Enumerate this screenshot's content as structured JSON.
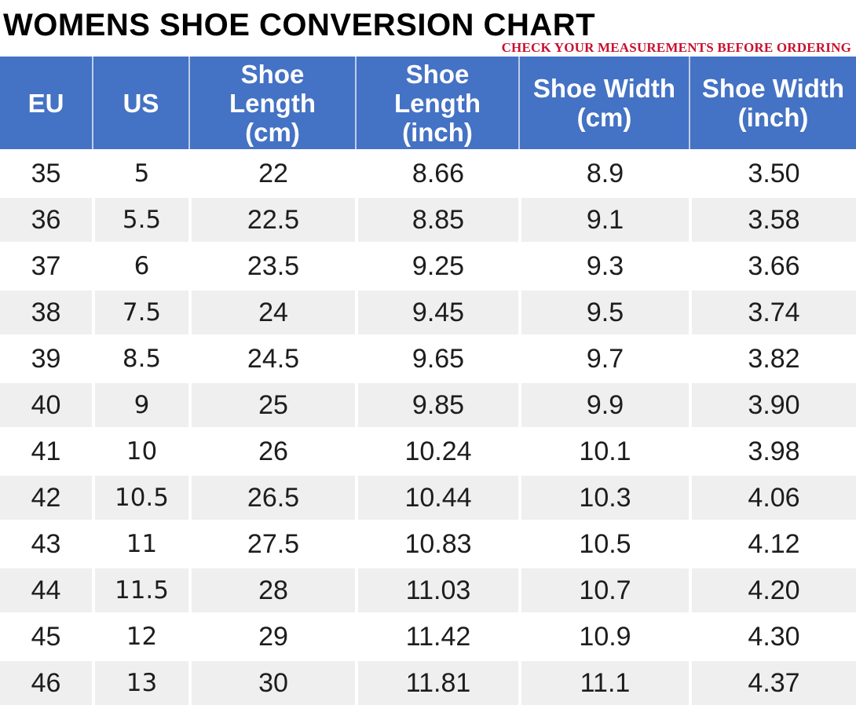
{
  "title": "WOMENS SHOE CONVERSION CHART",
  "warning": "CHECK YOUR MEASUREMENTS BEFORE ORDERING",
  "colors": {
    "title_text": "#000000",
    "warning_text": "#C8102E",
    "header_bg": "#4472C4",
    "header_text": "#FFFFFF",
    "row_bg": "#FFFFFF",
    "row_alt_bg": "#EFEFEF",
    "cell_text": "#1D1D1D"
  },
  "table": {
    "headers": [
      "EU",
      "US",
      "Shoe\nLength\n(cm)",
      "Shoe\nLength\n(inch)",
      "Shoe Width\n(cm)",
      "Shoe Width\n(inch)"
    ]
  },
  "chart_data": {
    "type": "table",
    "title": "WOMENS SHOE CONVERSION CHART",
    "columns": [
      "EU",
      "US",
      "Shoe Length (cm)",
      "Shoe Length (inch)",
      "Shoe Width (cm)",
      "Shoe Width (inch)"
    ],
    "rows": [
      [
        "35",
        "5",
        "22",
        "8.66",
        "8.9",
        "3.50"
      ],
      [
        "36",
        "5.5",
        "22.5",
        "8.85",
        "9.1",
        "3.58"
      ],
      [
        "37",
        "6",
        "23.5",
        "9.25",
        "9.3",
        "3.66"
      ],
      [
        "38",
        "7.5",
        "24",
        "9.45",
        "9.5",
        "3.74"
      ],
      [
        "39",
        "8.5",
        "24.5",
        "9.65",
        "9.7",
        "3.82"
      ],
      [
        "40",
        "9",
        "25",
        "9.85",
        "9.9",
        "3.90"
      ],
      [
        "41",
        "10",
        "26",
        "10.24",
        "10.1",
        "3.98"
      ],
      [
        "42",
        "10.5",
        "26.5",
        "10.44",
        "10.3",
        "4.06"
      ],
      [
        "43",
        "11",
        "27.5",
        "10.83",
        "10.5",
        "4.12"
      ],
      [
        "44",
        "11.5",
        "28",
        "11.03",
        "10.7",
        "4.20"
      ],
      [
        "45",
        "12",
        "29",
        "11.42",
        "10.9",
        "4.30"
      ],
      [
        "46",
        "13",
        "30",
        "11.81",
        "11.1",
        "4.37"
      ]
    ]
  }
}
